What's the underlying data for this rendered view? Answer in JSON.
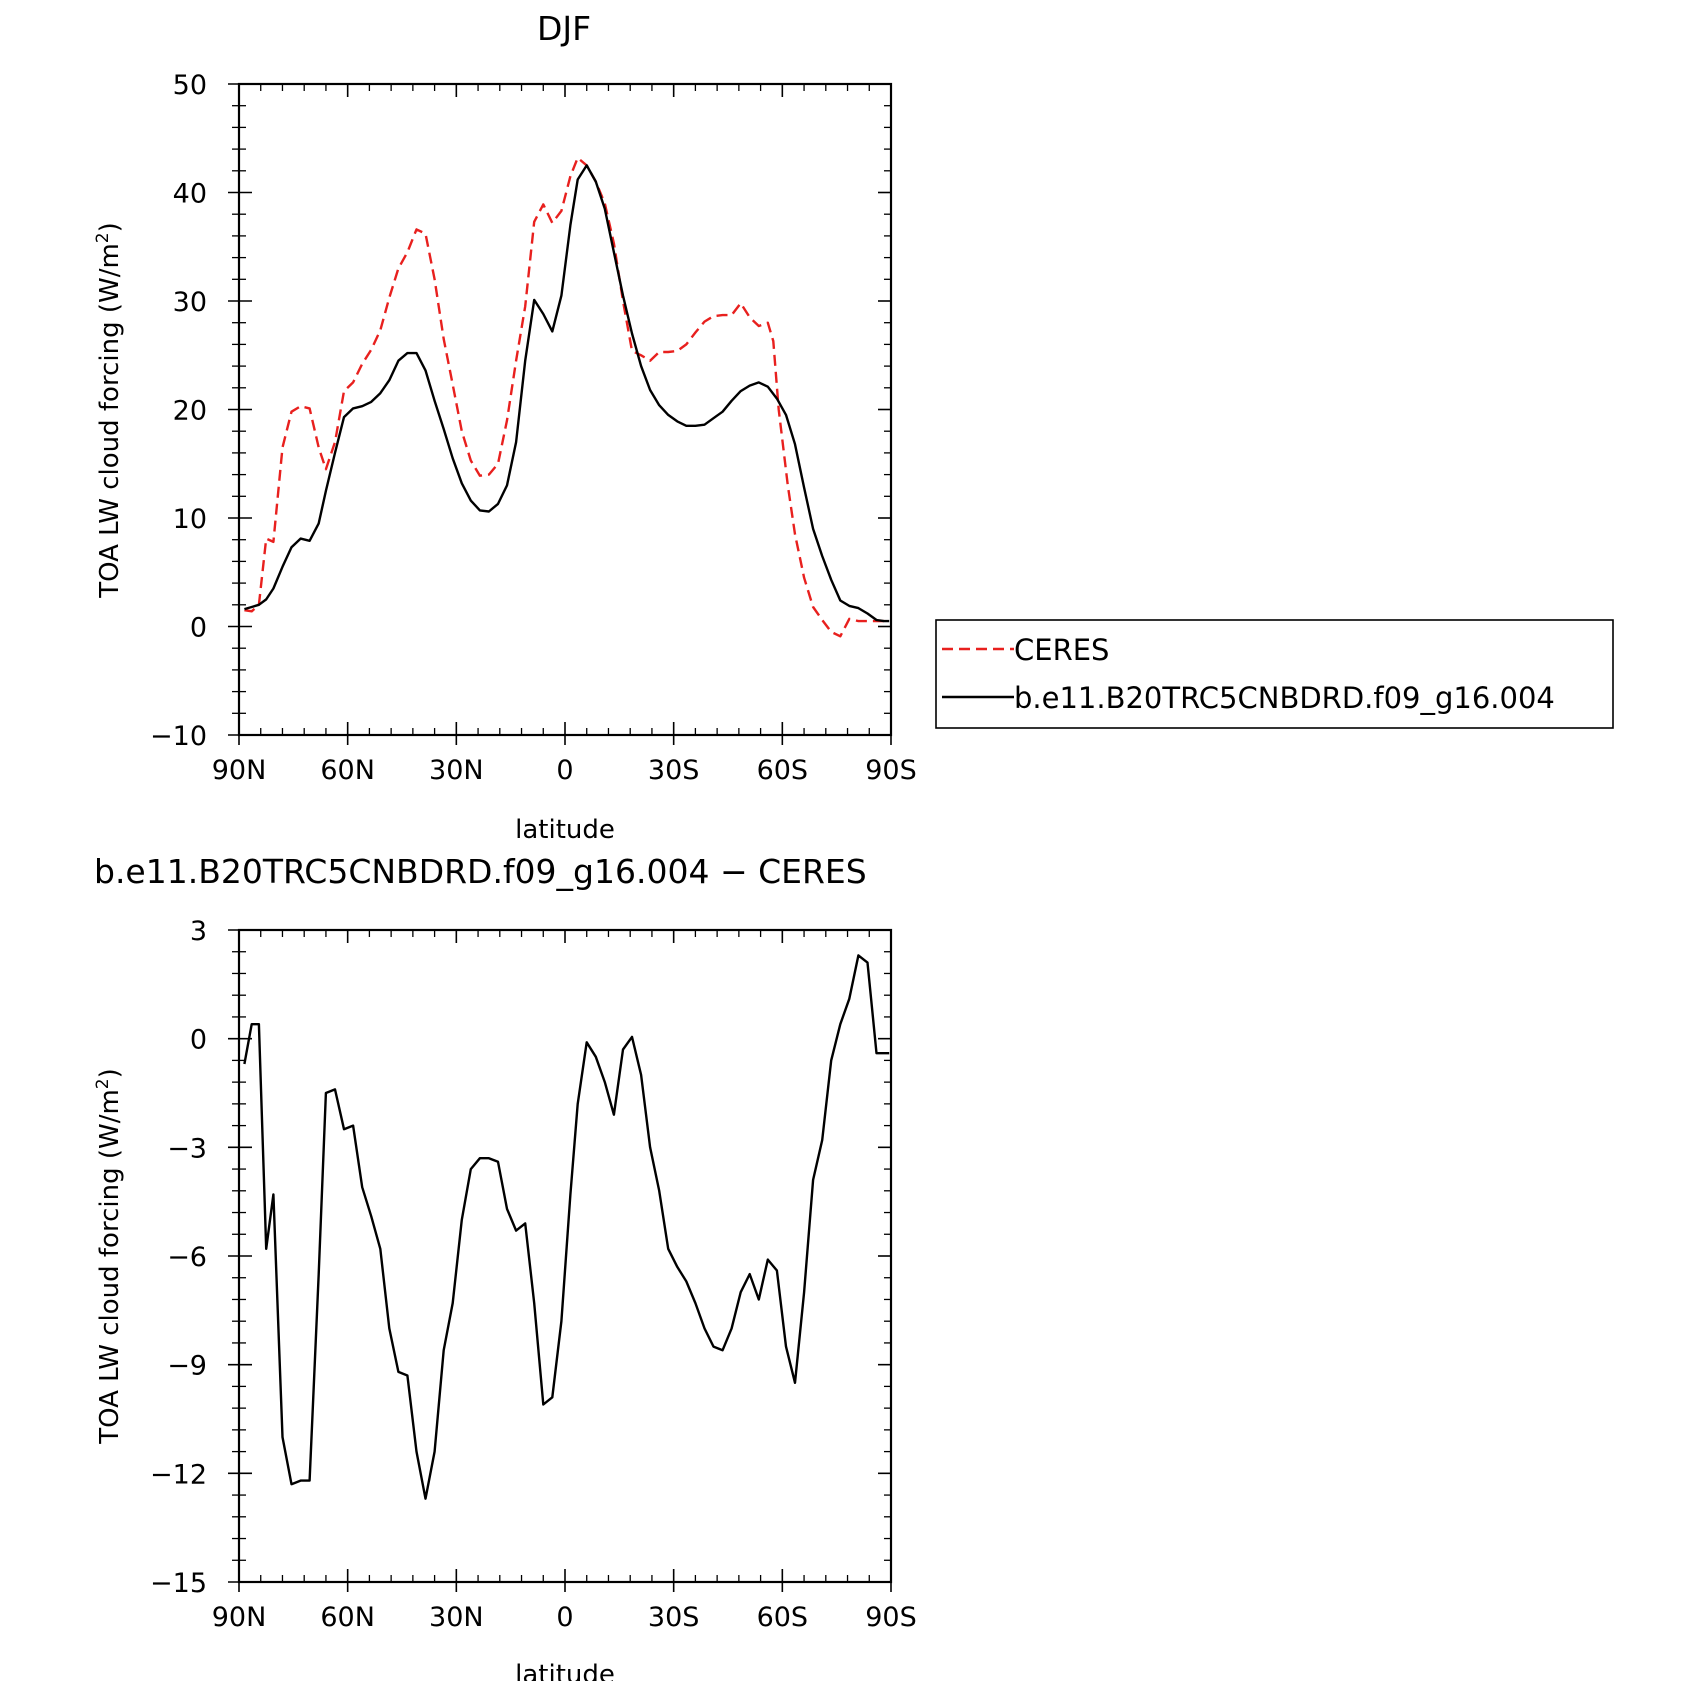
{
  "chart_data": [
    {
      "type": "line",
      "title": "DJF",
      "xlabel": "latitude",
      "ylabel": "TOA LW cloud forcing (W/m",
      "ylabel_sup": "2",
      "ylabel_end": ")",
      "xlim": [
        90,
        -90
      ],
      "ylim": [
        -10,
        50
      ],
      "xticks": [
        90,
        60,
        30,
        0,
        -30,
        -60,
        -90
      ],
      "xtick_labels": [
        "90N",
        "60N",
        "30N",
        "0",
        "30S",
        "60S",
        "90S"
      ],
      "yticks": [
        -10,
        0,
        10,
        20,
        30,
        40,
        50
      ],
      "ytick_labels": [
        "−10",
        "0",
        "10",
        "20",
        "30",
        "40",
        "50"
      ],
      "legend": {
        "placement": "right",
        "entries": [
          "CERES",
          "b.e11.B20TRC5CNBDRD.f09_g16.004"
        ]
      },
      "series": [
        {
          "name": "CERES",
          "color": "#e8201e",
          "dash": true,
          "x": [
            88.5,
            86.5,
            84.5,
            82.5,
            80.5,
            78,
            75.5,
            73,
            70.5,
            68,
            66,
            63.5,
            61,
            58.5,
            56,
            53.5,
            51,
            48.5,
            46,
            43.5,
            41,
            38.5,
            36,
            33.5,
            31,
            28.5,
            26,
            23.5,
            21,
            18.5,
            16,
            13.5,
            11,
            8.5,
            6,
            3.5,
            1,
            -1.5,
            -3.5,
            -6,
            -8.5,
            -11,
            -13.5,
            -16,
            -18.5,
            -21,
            -23.5,
            -26,
            -28.5,
            -31,
            -33.5,
            -36,
            -38.5,
            -41,
            -43.5,
            -46,
            -48.5,
            -51,
            -53.5,
            -56,
            -57.5,
            -59,
            -61.5,
            -63.5,
            -66,
            -68.5,
            -71,
            -73.5,
            -76,
            -78.5,
            -81,
            -83.5,
            -86,
            -88,
            -89.5
          ],
          "y": [
            1.5,
            1.4,
            2,
            8.1,
            7.8,
            16.5,
            19.8,
            20.3,
            20.1,
            16.5,
            14.5,
            17,
            21.7,
            22.5,
            24.2,
            25.5,
            27.3,
            30.3,
            33,
            34.5,
            36.6,
            36.2,
            32,
            26.5,
            22.3,
            18,
            15.3,
            13.9,
            14,
            15,
            19,
            24.5,
            29.5,
            37.3,
            38.9,
            37.2,
            38.3,
            41.5,
            43.2,
            42.5,
            41,
            39,
            35.3,
            30,
            25.4,
            25,
            24.5,
            25.3,
            25.3,
            25.4,
            26,
            27.1,
            28.1,
            28.6,
            28.7,
            28.7,
            29.8,
            28.5,
            27.7,
            28,
            26.3,
            20,
            13,
            8.5,
            4.5,
            1.8,
            0.6,
            -0.5,
            -0.9,
            0.7,
            0.5,
            0.5,
            0.5,
            0.5,
            0.5
          ]
        },
        {
          "name": "b.e11.B20TRC5CNBDRD.f09_g16.004",
          "color": "#000000",
          "dash": false,
          "x": [
            88.5,
            86.5,
            84.5,
            82.5,
            80.5,
            78,
            75.5,
            73,
            70.5,
            68,
            66,
            63.5,
            61,
            58.5,
            56,
            53.5,
            51,
            48.5,
            46,
            43.5,
            41,
            38.5,
            36,
            33.5,
            31,
            28.5,
            26,
            23.5,
            21,
            18.5,
            16,
            13.5,
            11,
            8.5,
            6,
            3.5,
            1,
            -1.5,
            -3.5,
            -6,
            -8.5,
            -11,
            -13.5,
            -16,
            -18.5,
            -21,
            -23.5,
            -26,
            -28.5,
            -31,
            -33.5,
            -36,
            -38.5,
            -41,
            -43.5,
            -46,
            -48.5,
            -51,
            -53.5,
            -56,
            -58.5,
            -61,
            -63.5,
            -66,
            -68.5,
            -71,
            -73.5,
            -76,
            -78.5,
            -81,
            -83.5,
            -86,
            -88,
            -89.5
          ],
          "y": [
            1.6,
            1.8,
            2,
            2.5,
            3.5,
            5.5,
            7.3,
            8.1,
            7.9,
            9.5,
            12.5,
            16,
            19.3,
            20.1,
            20.3,
            20.7,
            21.5,
            22.7,
            24.5,
            25.2,
            25.2,
            23.6,
            20.8,
            18.2,
            15.5,
            13.2,
            11.6,
            10.7,
            10.6,
            11.3,
            13,
            17,
            24.5,
            30.1,
            28.8,
            27.2,
            30.5,
            37,
            41.2,
            42.5,
            41,
            38.5,
            34.5,
            30.5,
            27,
            24,
            21.8,
            20.4,
            19.5,
            18.9,
            18.5,
            18.5,
            18.6,
            19.2,
            19.8,
            20.8,
            21.7,
            22.2,
            22.5,
            22.1,
            21,
            19.5,
            16.8,
            12.8,
            9,
            6.5,
            4.3,
            2.4,
            1.9,
            1.7,
            1.2,
            0.6,
            0.5,
            0.5
          ]
        }
      ]
    },
    {
      "type": "line",
      "title": "b.e11.B20TRC5CNBDRD.f09_g16.004 − CERES",
      "xlabel": "latitude",
      "ylabel": "TOA LW cloud forcing (W/m",
      "ylabel_sup": "2",
      "ylabel_end": ")",
      "xlim": [
        90,
        -90
      ],
      "ylim": [
        -15,
        3
      ],
      "xticks": [
        90,
        60,
        30,
        0,
        -30,
        -60,
        -90
      ],
      "xtick_labels": [
        "90N",
        "60N",
        "30N",
        "0",
        "30S",
        "60S",
        "90S"
      ],
      "yticks": [
        -15,
        -12,
        -9,
        -6,
        -3,
        0,
        3
      ],
      "ytick_labels": [
        "−15",
        "−12",
        "−9",
        "−6",
        "−3",
        "0",
        "3"
      ],
      "series": [
        {
          "color": "#000000",
          "dash": false,
          "x": [
            88.5,
            86.5,
            84.5,
            82.5,
            80.5,
            78,
            75.5,
            73,
            70.5,
            68,
            66,
            63.5,
            61,
            58.5,
            56,
            53.5,
            51,
            48.5,
            46,
            43.5,
            41,
            38.5,
            36,
            33.5,
            31,
            28.5,
            26,
            23.5,
            21,
            18.5,
            16,
            13.5,
            11,
            8.5,
            6,
            3.5,
            1,
            -1.5,
            -3.5,
            -6,
            -8.5,
            -11,
            -13.5,
            -16,
            -18.5,
            -21,
            -23.5,
            -26,
            -28.5,
            -31,
            -33.5,
            -36,
            -38.5,
            -41,
            -43.5,
            -46,
            -48.5,
            -51,
            -53.5,
            -56,
            -58.5,
            -61,
            -63.5,
            -66,
            -68.5,
            -71,
            -73.5,
            -76,
            -78.5,
            -81,
            -83.5,
            -86,
            -88,
            -89.5
          ],
          "y": [
            -0.7,
            0.4,
            0.4,
            -5.8,
            -4.3,
            -11,
            -12.3,
            -12.2,
            -12.2,
            -6.5,
            -1.5,
            -1.4,
            -2.5,
            -2.4,
            -4.1,
            -4.9,
            -5.8,
            -8,
            -9.2,
            -9.3,
            -11.4,
            -12.7,
            -11.4,
            -8.6,
            -7.3,
            -5,
            -3.6,
            -3.3,
            -3.3,
            -3.4,
            -4.7,
            -5.3,
            -5.1,
            -7.3,
            -10.1,
            -9.9,
            -7.8,
            -4.3,
            -1.8,
            -0.1,
            -0.5,
            -1.2,
            -2.1,
            -0.3,
            0.05,
            -1,
            -3,
            -4.2,
            -5.8,
            -6.3,
            -6.7,
            -7.3,
            -8,
            -8.5,
            -8.6,
            -8,
            -7,
            -6.5,
            -7.2,
            -6.1,
            -6.4,
            -8.5,
            -9.5,
            -7,
            -3.9,
            -2.8,
            -0.6,
            0.4,
            1.1,
            2.3,
            2.1,
            -0.4,
            -0.4,
            -0.4
          ]
        }
      ]
    }
  ]
}
